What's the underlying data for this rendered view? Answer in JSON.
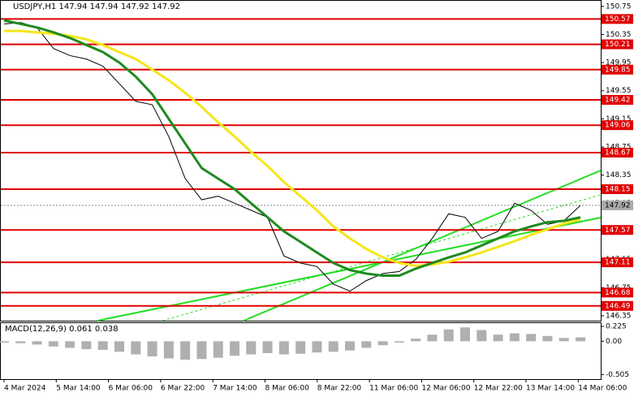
{
  "chart_data": {
    "type": "line",
    "title": "USDJPY,H1  147.94 147.94 147.92 147.92",
    "ylim": [
      146.28,
      150.84
    ],
    "yticks": [
      150.75,
      150.35,
      149.95,
      149.55,
      149.15,
      148.75,
      148.35,
      147.95,
      147.55,
      147.15,
      146.75,
      146.35
    ],
    "levels": [
      150.57,
      150.21,
      149.85,
      149.42,
      149.06,
      148.67,
      148.15,
      147.57,
      147.11,
      146.68,
      146.49
    ],
    "last_price": 147.92,
    "series": [
      {
        "color": "#000000",
        "values": [
          150.5,
          150.52,
          150.45,
          150.15,
          150.05,
          150.0,
          149.9,
          149.65,
          149.4,
          149.35,
          148.9,
          148.3,
          148.0,
          148.05,
          147.95,
          147.85,
          147.75,
          147.2,
          147.1,
          147.05,
          146.8,
          146.7,
          146.85,
          146.95,
          146.98,
          147.15,
          147.45,
          147.8,
          147.75,
          147.45,
          147.55,
          147.95,
          147.85,
          147.65,
          147.7,
          147.92
        ]
      },
      {
        "color": "#f5e61a",
        "values": [
          150.4,
          150.4,
          150.38,
          150.36,
          150.33,
          150.28,
          150.2,
          150.1,
          150.0,
          149.85,
          149.7,
          149.52,
          149.32,
          149.1,
          148.9,
          148.68,
          148.48,
          148.25,
          148.05,
          147.85,
          147.62,
          147.45,
          147.3,
          147.18,
          147.1,
          147.06,
          147.08,
          147.12,
          147.18,
          147.25,
          147.33,
          147.41,
          147.5,
          147.58,
          147.66,
          147.72
        ]
      },
      {
        "color": "#1f8a1f",
        "values": [
          150.55,
          150.5,
          150.45,
          150.38,
          150.3,
          150.2,
          150.1,
          149.95,
          149.75,
          149.5,
          149.15,
          148.8,
          148.45,
          148.3,
          148.15,
          147.95,
          147.75,
          147.55,
          147.4,
          147.25,
          147.1,
          147.0,
          146.95,
          146.92,
          146.92,
          147.02,
          147.1,
          147.18,
          147.25,
          147.35,
          147.45,
          147.55,
          147.62,
          147.68,
          147.7,
          147.75
        ]
      }
    ],
    "xlabels": [
      "4 Mar 2024",
      "5 Mar 14:00",
      "6 Mar 06:00",
      "6 Mar 22:00",
      "7 Mar 14:00",
      "8 Mar 06:00",
      "8 Mar 22:00",
      "11 Mar 06:00",
      "12 Mar 06:00",
      "12 Mar 22:00",
      "13 Mar 14:00",
      "14 Mar 06:00"
    ],
    "macd": {
      "title": "MACD(12,26,9) 0.061 0.038",
      "ylim": [
        -0.575,
        0.275
      ],
      "yticks": [
        0.225,
        {
          "value": 0,
          "label": "0.00"
        },
        -0.505
      ],
      "color": "#b0b0b0",
      "values": [
        -0.02,
        -0.03,
        -0.05,
        -0.08,
        -0.1,
        -0.12,
        -0.13,
        -0.16,
        -0.2,
        -0.23,
        -0.26,
        -0.28,
        -0.27,
        -0.25,
        -0.22,
        -0.2,
        -0.18,
        -0.2,
        -0.19,
        -0.17,
        -0.16,
        -0.14,
        -0.1,
        -0.06,
        -0.02,
        0.04,
        0.1,
        0.18,
        0.21,
        0.17,
        0.1,
        0.12,
        0.11,
        0.08,
        0.05,
        0.06
      ]
    }
  }
}
